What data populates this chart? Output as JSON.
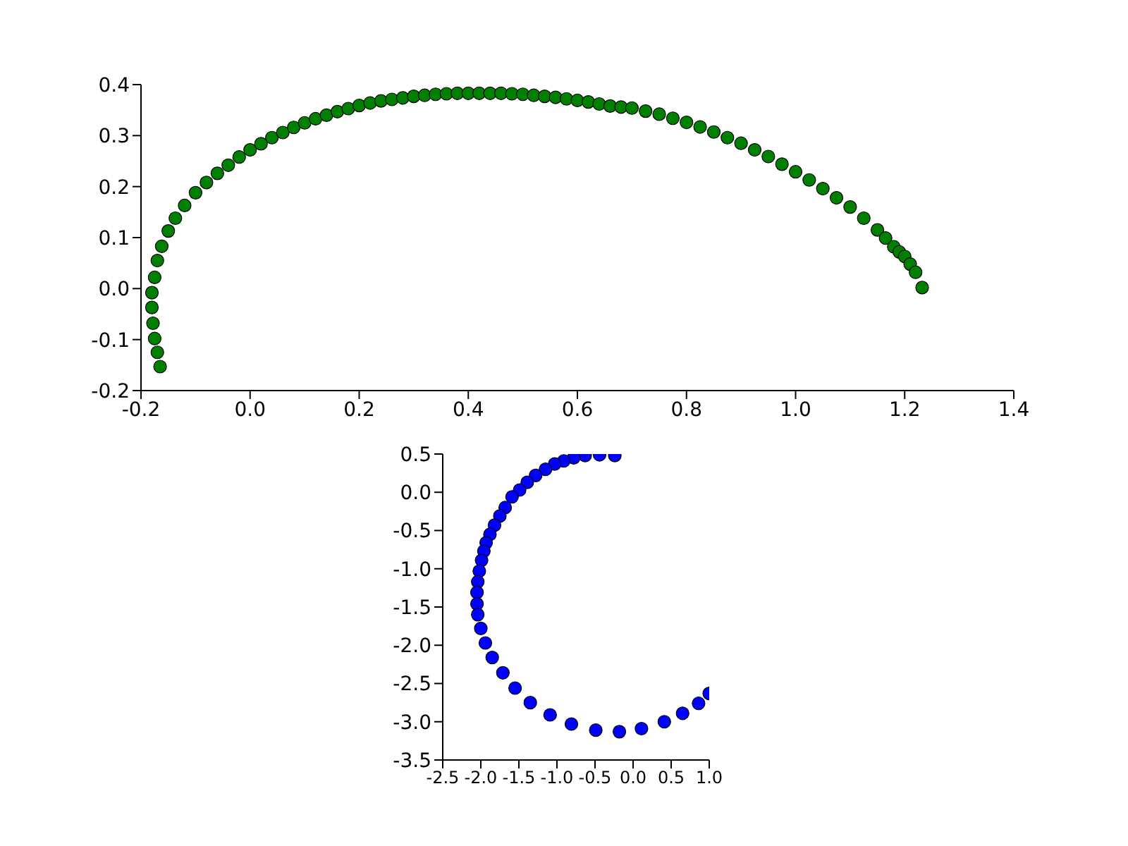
{
  "chart_data": [
    {
      "type": "scatter",
      "marker": "circle",
      "xlim": [
        -0.2,
        1.4
      ],
      "xticks": [
        -0.2,
        {
          "value": 0,
          "label": "0.0"
        },
        0.2,
        0.4,
        0.6,
        0.8,
        {
          "value": 1,
          "label": "1.0"
        },
        1.2,
        1.4
      ],
      "ylim": [
        -0.2,
        0.4
      ],
      "yticks": [
        -0.2,
        -0.1,
        {
          "value": 0,
          "label": "0.0"
        },
        0.1,
        0.2,
        0.3,
        0.4
      ],
      "series": [
        {
          "color": "#008000",
          "x": [
            -0.165,
            -0.17,
            -0.175,
            -0.178,
            -0.18,
            -0.18,
            -0.175,
            -0.17,
            -0.162,
            -0.15,
            -0.137,
            -0.12,
            -0.1,
            -0.08,
            -0.06,
            -0.04,
            -0.02,
            0.0,
            0.02,
            0.04,
            0.06,
            0.08,
            0.1,
            0.12,
            0.14,
            0.16,
            0.18,
            0.2,
            0.22,
            0.24,
            0.26,
            0.28,
            0.3,
            0.32,
            0.34,
            0.36,
            0.38,
            0.4,
            0.42,
            0.44,
            0.46,
            0.48,
            0.5,
            0.52,
            0.54,
            0.56,
            0.58,
            0.6,
            0.62,
            0.64,
            0.66,
            0.68,
            0.7,
            0.725,
            0.75,
            0.775,
            0.8,
            0.825,
            0.85,
            0.875,
            0.9,
            0.925,
            0.95,
            0.975,
            1.0,
            1.025,
            1.05,
            1.075,
            1.1,
            1.125,
            1.15,
            1.165,
            1.18,
            1.19,
            1.2,
            1.21,
            1.22,
            1.232
          ],
          "values": [
            -0.153,
            -0.125,
            -0.098,
            -0.068,
            -0.037,
            -0.008,
            0.022,
            0.055,
            0.083,
            0.113,
            0.138,
            0.163,
            0.188,
            0.208,
            0.226,
            0.242,
            0.258,
            0.272,
            0.284,
            0.296,
            0.306,
            0.316,
            0.325,
            0.333,
            0.34,
            0.347,
            0.353,
            0.359,
            0.364,
            0.368,
            0.371,
            0.374,
            0.377,
            0.379,
            0.381,
            0.382,
            0.383,
            0.383,
            0.383,
            0.383,
            0.383,
            0.382,
            0.381,
            0.379,
            0.377,
            0.375,
            0.372,
            0.369,
            0.366,
            0.362,
            0.358,
            0.356,
            0.354,
            0.348,
            0.342,
            0.334,
            0.326,
            0.317,
            0.307,
            0.296,
            0.285,
            0.272,
            0.259,
            0.244,
            0.229,
            0.213,
            0.196,
            0.178,
            0.16,
            0.138,
            0.115,
            0.099,
            0.082,
            0.072,
            0.063,
            0.048,
            0.032,
            0.002
          ]
        }
      ]
    },
    {
      "type": "scatter",
      "marker": "circle",
      "xlim": [
        -2.5,
        1.0
      ],
      "xticks": [
        -2.5,
        {
          "value": -2,
          "label": "-2.0"
        },
        -1.5,
        {
          "value": -1,
          "label": "-1.0"
        },
        -0.5,
        {
          "value": 0,
          "label": "0.0"
        },
        0.5,
        {
          "value": 1,
          "label": "1.0"
        }
      ],
      "ylim": [
        -3.5,
        0.5
      ],
      "yticks": [
        -3.5,
        {
          "value": -3,
          "label": "-3.0"
        },
        -2.5,
        {
          "value": -2,
          "label": "-2.0"
        },
        -1.5,
        {
          "value": -1,
          "label": "-1.0"
        },
        -0.5,
        {
          "value": 0,
          "label": "0.0"
        },
        0.5
      ],
      "series": [
        {
          "color": "#0000ff",
          "x": [
            -0.24,
            -0.44,
            -0.63,
            -0.78,
            -0.91,
            -1.03,
            -1.15,
            -1.28,
            -1.39,
            -1.49,
            -1.59,
            -1.68,
            -1.75,
            -1.82,
            -1.88,
            -1.93,
            -1.96,
            -1.99,
            -2.02,
            -2.04,
            -2.05,
            -2.05,
            -2.04,
            -2.0,
            -1.94,
            -1.85,
            -1.71,
            -1.55,
            -1.35,
            -1.09,
            -0.81,
            -0.49,
            -0.18,
            0.11,
            0.41,
            0.65,
            0.86,
            1.0
          ],
          "values": [
            0.48,
            0.49,
            0.48,
            0.45,
            0.41,
            0.37,
            0.3,
            0.22,
            0.13,
            0.03,
            -0.06,
            -0.2,
            -0.31,
            -0.43,
            -0.55,
            -0.66,
            -0.77,
            -0.89,
            -1.03,
            -1.17,
            -1.31,
            -1.46,
            -1.6,
            -1.78,
            -1.97,
            -2.16,
            -2.36,
            -2.56,
            -2.75,
            -2.91,
            -3.03,
            -3.11,
            -3.13,
            -3.09,
            -3.0,
            -2.89,
            -2.76,
            -2.63
          ]
        }
      ]
    }
  ]
}
